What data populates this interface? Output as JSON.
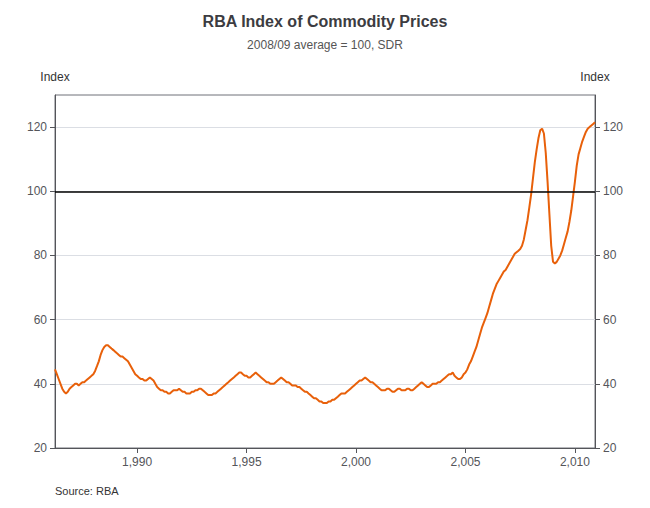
{
  "chart_data": {
    "type": "line",
    "title": "RBA Index of Commodity Prices",
    "subtitle": "2008/09 average = 100, SDR",
    "ylabel": "Index",
    "y2label": "Index",
    "source": "Source: RBA",
    "color": "#E8600A",
    "grid": true,
    "hline": {
      "value": 100,
      "color": "#000000"
    },
    "xlim": [
      1986.25,
      2010.917
    ],
    "xticks": [
      1990,
      1995,
      2000,
      2005,
      2010
    ],
    "ylim": [
      20,
      130
    ],
    "yticks": [
      20,
      40,
      60,
      80,
      100,
      120
    ],
    "y2lim": [
      20,
      130
    ],
    "y2ticks": [
      20,
      40,
      60,
      80,
      100,
      120
    ],
    "x": [
      1986.25,
      1986.333,
      1986.417,
      1986.5,
      1986.583,
      1986.667,
      1986.75,
      1986.833,
      1986.917,
      1987.0,
      1987.083,
      1987.167,
      1987.25,
      1987.333,
      1987.417,
      1987.5,
      1987.583,
      1987.667,
      1987.75,
      1987.833,
      1987.917,
      1988.0,
      1988.083,
      1988.167,
      1988.25,
      1988.333,
      1988.417,
      1988.5,
      1988.583,
      1988.667,
      1988.75,
      1988.833,
      1988.917,
      1989.0,
      1989.083,
      1989.167,
      1989.25,
      1989.333,
      1989.417,
      1989.5,
      1989.583,
      1989.667,
      1989.75,
      1989.833,
      1989.917,
      1990.0,
      1990.083,
      1990.167,
      1990.25,
      1990.333,
      1990.417,
      1990.5,
      1990.583,
      1990.667,
      1990.75,
      1990.833,
      1990.917,
      1991.0,
      1991.083,
      1991.167,
      1991.25,
      1991.333,
      1991.417,
      1991.5,
      1991.583,
      1991.667,
      1991.75,
      1991.833,
      1991.917,
      1992.0,
      1992.083,
      1992.167,
      1992.25,
      1992.333,
      1992.417,
      1992.5,
      1992.583,
      1992.667,
      1992.75,
      1992.833,
      1992.917,
      1993.0,
      1993.083,
      1993.167,
      1993.25,
      1993.333,
      1993.417,
      1993.5,
      1993.583,
      1993.667,
      1993.75,
      1993.833,
      1993.917,
      1994.0,
      1994.083,
      1994.167,
      1994.25,
      1994.333,
      1994.417,
      1994.5,
      1994.583,
      1994.667,
      1994.75,
      1994.833,
      1994.917,
      1995.0,
      1995.083,
      1995.167,
      1995.25,
      1995.333,
      1995.417,
      1995.5,
      1995.583,
      1995.667,
      1995.75,
      1995.833,
      1995.917,
      1996.0,
      1996.083,
      1996.167,
      1996.25,
      1996.333,
      1996.417,
      1996.5,
      1996.583,
      1996.667,
      1996.75,
      1996.833,
      1996.917,
      1997.0,
      1997.083,
      1997.167,
      1997.25,
      1997.333,
      1997.417,
      1997.5,
      1997.583,
      1997.667,
      1997.75,
      1997.833,
      1997.917,
      1998.0,
      1998.083,
      1998.167,
      1998.25,
      1998.333,
      1998.417,
      1998.5,
      1998.583,
      1998.667,
      1998.75,
      1998.833,
      1998.917,
      1999.0,
      1999.083,
      1999.167,
      1999.25,
      1999.333,
      1999.417,
      1999.5,
      1999.583,
      1999.667,
      1999.75,
      1999.833,
      1999.917,
      2000.0,
      2000.083,
      2000.167,
      2000.25,
      2000.333,
      2000.417,
      2000.5,
      2000.583,
      2000.667,
      2000.75,
      2000.833,
      2000.917,
      2001.0,
      2001.083,
      2001.167,
      2001.25,
      2001.333,
      2001.417,
      2001.5,
      2001.583,
      2001.667,
      2001.75,
      2001.833,
      2001.917,
      2002.0,
      2002.083,
      2002.167,
      2002.25,
      2002.333,
      2002.417,
      2002.5,
      2002.583,
      2002.667,
      2002.75,
      2002.833,
      2002.917,
      2003.0,
      2003.083,
      2003.167,
      2003.25,
      2003.333,
      2003.417,
      2003.5,
      2003.583,
      2003.667,
      2003.75,
      2003.833,
      2003.917,
      2004.0,
      2004.083,
      2004.167,
      2004.25,
      2004.333,
      2004.417,
      2004.5,
      2004.583,
      2004.667,
      2004.75,
      2004.833,
      2004.917,
      2005.0,
      2005.083,
      2005.167,
      2005.25,
      2005.333,
      2005.417,
      2005.5,
      2005.583,
      2005.667,
      2005.75,
      2005.833,
      2005.917,
      2006.0,
      2006.083,
      2006.167,
      2006.25,
      2006.333,
      2006.417,
      2006.5,
      2006.583,
      2006.667,
      2006.75,
      2006.833,
      2006.917,
      2007.0,
      2007.083,
      2007.167,
      2007.25,
      2007.333,
      2007.417,
      2007.5,
      2007.583,
      2007.667,
      2007.75,
      2007.833,
      2007.917,
      2008.0,
      2008.083,
      2008.167,
      2008.25,
      2008.333,
      2008.417,
      2008.5,
      2008.583,
      2008.667,
      2008.75,
      2008.833,
      2008.917,
      2009.0,
      2009.083,
      2009.167,
      2009.25,
      2009.333,
      2009.417,
      2009.5,
      2009.583,
      2009.667,
      2009.75,
      2009.833,
      2009.917,
      2010.0,
      2010.083,
      2010.167,
      2010.25,
      2010.333,
      2010.417,
      2010.5,
      2010.583,
      2010.667,
      2010.75,
      2010.833,
      2010.917
    ],
    "values": [
      44.5,
      43.0,
      41.5,
      40.0,
      38.5,
      37.5,
      37.0,
      37.5,
      38.5,
      39.0,
      39.5,
      40.0,
      40.0,
      39.5,
      40.0,
      40.5,
      40.5,
      41.0,
      41.5,
      42.0,
      42.5,
      43.0,
      44.0,
      45.5,
      47.0,
      49.0,
      50.5,
      51.5,
      52.0,
      52.0,
      51.5,
      51.0,
      50.5,
      50.0,
      49.5,
      49.0,
      48.5,
      48.5,
      48.0,
      47.5,
      47.0,
      46.0,
      45.0,
      44.0,
      43.0,
      42.5,
      42.0,
      41.5,
      41.5,
      41.0,
      41.0,
      41.5,
      42.0,
      41.5,
      41.0,
      40.0,
      39.0,
      38.5,
      38.0,
      38.0,
      37.5,
      37.5,
      37.0,
      37.0,
      37.5,
      38.0,
      38.0,
      38.0,
      38.5,
      38.0,
      37.5,
      37.5,
      37.0,
      37.0,
      37.0,
      37.5,
      37.5,
      38.0,
      38.0,
      38.5,
      38.5,
      38.0,
      37.5,
      37.0,
      36.5,
      36.5,
      36.5,
      37.0,
      37.0,
      37.5,
      38.0,
      38.5,
      39.0,
      39.5,
      40.0,
      40.5,
      41.0,
      41.5,
      42.0,
      42.5,
      43.0,
      43.5,
      43.5,
      43.0,
      42.5,
      42.5,
      42.0,
      42.0,
      42.5,
      43.0,
      43.5,
      43.0,
      42.5,
      42.0,
      41.5,
      41.0,
      40.5,
      40.5,
      40.0,
      40.0,
      40.0,
      40.5,
      41.0,
      41.5,
      42.0,
      41.5,
      41.0,
      40.5,
      40.5,
      40.0,
      39.5,
      39.5,
      39.5,
      39.0,
      39.0,
      38.5,
      38.0,
      37.5,
      37.5,
      37.0,
      36.5,
      36.0,
      35.5,
      35.5,
      35.0,
      34.5,
      34.5,
      34.0,
      34.0,
      34.0,
      34.5,
      34.5,
      35.0,
      35.0,
      35.5,
      36.0,
      36.5,
      37.0,
      37.0,
      37.0,
      37.5,
      38.0,
      38.5,
      39.0,
      39.5,
      40.0,
      40.5,
      41.0,
      41.0,
      41.5,
      42.0,
      41.5,
      41.0,
      40.5,
      40.5,
      40.0,
      39.5,
      39.0,
      38.5,
      38.0,
      38.0,
      38.0,
      38.5,
      38.5,
      38.0,
      37.5,
      37.5,
      38.0,
      38.5,
      38.5,
      38.0,
      38.0,
      38.0,
      38.5,
      38.5,
      38.0,
      38.0,
      38.5,
      39.0,
      39.5,
      40.0,
      40.5,
      40.0,
      39.5,
      39.0,
      39.0,
      39.5,
      40.0,
      40.0,
      40.0,
      40.5,
      40.5,
      41.0,
      41.5,
      42.0,
      42.5,
      43.0,
      43.0,
      43.5,
      42.5,
      42.0,
      41.5,
      41.5,
      42.0,
      43.0,
      43.5,
      44.5,
      46.0,
      47.0,
      48.5,
      50.0,
      51.5,
      53.5,
      55.5,
      57.5,
      59.0,
      60.5,
      62.0,
      64.0,
      66.0,
      68.0,
      69.5,
      71.0,
      72.0,
      73.0,
      74.0,
      75.0,
      75.5,
      76.5,
      77.5,
      78.5,
      79.5,
      80.5,
      81.0,
      81.5,
      82.0,
      83.0,
      85.0,
      88.0,
      91.0,
      95.0,
      99.0,
      104.0,
      109.0,
      113.0,
      116.5,
      119.0,
      119.5,
      118.0,
      112.0,
      103.0,
      93.0,
      83.0,
      78.0,
      77.5,
      78.0,
      79.0,
      80.0,
      81.5,
      83.5,
      85.5,
      87.5,
      90.5,
      94.0,
      98.5,
      103.0,
      108.0,
      111.5,
      113.5,
      115.5,
      117.0,
      118.5,
      119.5,
      120.0,
      120.5,
      121.0,
      121.5
    ]
  }
}
